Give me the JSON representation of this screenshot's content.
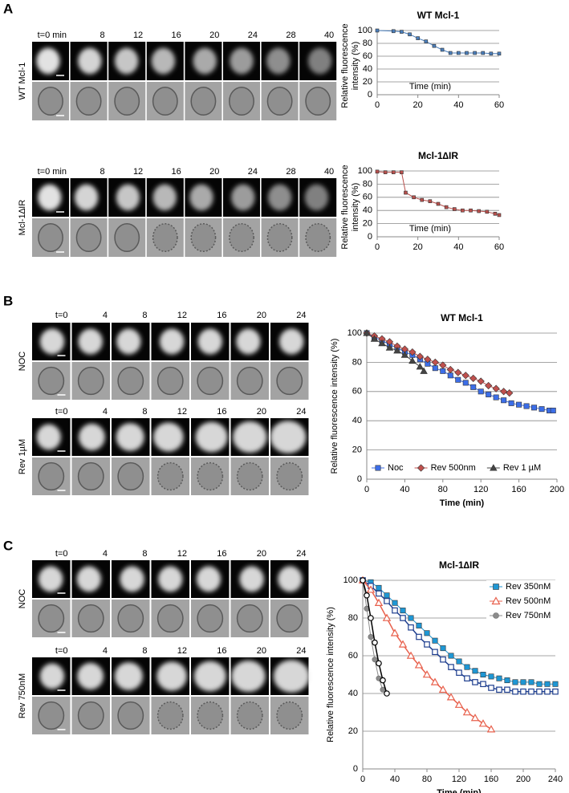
{
  "panels": [
    {
      "letter": "A",
      "strips": [
        {
          "label": "WT Mcl-1",
          "times": [
            "t=0 min",
            "8",
            "12",
            "16",
            "20",
            "24",
            "28",
            "40"
          ]
        },
        {
          "label": "Mcl-1∆IR",
          "times": [
            "t=0 min",
            "8",
            "12",
            "16",
            "20",
            "24",
            "28",
            "40"
          ]
        }
      ]
    },
    {
      "letter": "B",
      "strips": [
        {
          "label": "NOC",
          "times": [
            "t=0",
            "4",
            "8",
            "12",
            "16",
            "20",
            "24"
          ]
        },
        {
          "label": "Rev 1µM",
          "times": [
            "t=0",
            "4",
            "8",
            "12",
            "16",
            "20",
            "24"
          ]
        }
      ]
    },
    {
      "letter": "C",
      "strips": [
        {
          "label": "NOC",
          "times": [
            "t=0",
            "4",
            "8",
            "12",
            "16",
            "20",
            "24"
          ]
        },
        {
          "label": "Rev 750nM",
          "times": [
            "t=0",
            "4",
            "8",
            "12",
            "16",
            "20",
            "24"
          ]
        }
      ]
    }
  ],
  "chart_data": [
    {
      "type": "line",
      "title": "WT Mcl-1",
      "xlabel": "Time (min)",
      "ylabel": [
        "Relative fluorescence",
        "intensity (%)"
      ],
      "xlim": [
        0,
        60
      ],
      "xticks": [
        0,
        20,
        40,
        60
      ],
      "ylim": [
        0,
        100
      ],
      "yticks": [
        0,
        20,
        40,
        60,
        80,
        100
      ],
      "grid": true,
      "series": [
        {
          "color": "#4a7ebb",
          "marker": "square",
          "x": [
            0,
            8,
            12,
            16,
            20,
            24,
            28,
            32,
            36,
            40,
            44,
            48,
            52,
            56,
            60
          ],
          "values": [
            100,
            99,
            98,
            94,
            88,
            83,
            76,
            70,
            65,
            65,
            65,
            65,
            65,
            64,
            64
          ]
        }
      ]
    },
    {
      "type": "line",
      "title": "Mcl-1∆IR",
      "xlabel": "Time (min)",
      "ylabel": [
        "Relative fluorescence",
        "intensity (%)"
      ],
      "xlim": [
        0,
        60
      ],
      "xticks": [
        0,
        20,
        40,
        60
      ],
      "ylim": [
        0,
        100
      ],
      "yticks": [
        0,
        20,
        40,
        60,
        80,
        100
      ],
      "grid": true,
      "series": [
        {
          "color": "#b9504d",
          "marker": "square",
          "x": [
            0,
            4,
            8,
            12,
            14,
            18,
            22,
            26,
            30,
            34,
            38,
            42,
            46,
            50,
            54,
            58,
            60
          ],
          "values": [
            99,
            98,
            98,
            98,
            67,
            60,
            56,
            54,
            50,
            45,
            42,
            40,
            40,
            39,
            38,
            35,
            33
          ]
        }
      ]
    },
    {
      "type": "line",
      "title": "WT Mcl-1",
      "xlabel": "Time (min)",
      "ylabel": "Relative fluorescence intensity (%)",
      "xlim": [
        0,
        200
      ],
      "xticks": [
        0,
        40,
        80,
        120,
        160,
        200
      ],
      "ylim": [
        0,
        100
      ],
      "yticks": [
        0,
        20,
        40,
        60,
        80,
        100
      ],
      "grid": true,
      "legend": "bottom",
      "series": [
        {
          "name": "Noc",
          "color": "#3c6ee8",
          "marker": "square",
          "x": [
            0,
            8,
            16,
            24,
            32,
            40,
            48,
            56,
            64,
            72,
            80,
            88,
            96,
            104,
            112,
            120,
            128,
            136,
            144,
            152,
            160,
            168,
            176,
            184,
            192,
            196
          ],
          "values": [
            100,
            97,
            95,
            92,
            90,
            87,
            85,
            82,
            79,
            76,
            74,
            71,
            68,
            66,
            63,
            60,
            58,
            56,
            54,
            52,
            51,
            50,
            49,
            48,
            47,
            47
          ]
        },
        {
          "name": "Rev 500nm",
          "color": "#c0504d",
          "marker": "diamond",
          "x": [
            0,
            8,
            16,
            24,
            32,
            40,
            48,
            56,
            64,
            72,
            80,
            88,
            96,
            104,
            112,
            120,
            128,
            136,
            144,
            150
          ],
          "values": [
            100,
            98,
            96,
            94,
            91,
            89,
            87,
            84,
            82,
            80,
            78,
            75,
            73,
            71,
            69,
            67,
            64,
            62,
            60,
            59
          ]
        },
        {
          "name": "Rev 1 µM",
          "color": "#444444",
          "marker": "triangle",
          "x": [
            0,
            8,
            16,
            24,
            32,
            40,
            48,
            56,
            60
          ],
          "values": [
            100,
            96,
            93,
            90,
            88,
            85,
            81,
            77,
            74
          ]
        }
      ]
    },
    {
      "type": "line",
      "title": "Mcl-1∆IR",
      "xlabel": "Time (min)",
      "ylabel": "Relative fluorescence intensity (%)",
      "xlim": [
        0,
        240
      ],
      "xticks": [
        0,
        40,
        80,
        120,
        160,
        200,
        240
      ],
      "ylim": [
        0,
        100
      ],
      "yticks": [
        0,
        20,
        40,
        60,
        80,
        100
      ],
      "grid": true,
      "legend": "top-right",
      "series": [
        {
          "name": "Rev 350nM",
          "color": "#1f97d4",
          "marker": "square",
          "x": [
            0,
            10,
            20,
            30,
            40,
            50,
            60,
            70,
            80,
            90,
            100,
            110,
            120,
            130,
            140,
            150,
            160,
            170,
            180,
            190,
            200,
            210,
            220,
            230,
            240
          ],
          "values": [
            100,
            99,
            96,
            92,
            88,
            84,
            80,
            76,
            72,
            68,
            64,
            60,
            57,
            54,
            52,
            50,
            49,
            48,
            47,
            46,
            46,
            46,
            45,
            45,
            45
          ]
        },
        {
          "color": "#1f3f8f",
          "marker": "open-square",
          "x": [
            0,
            10,
            20,
            30,
            40,
            50,
            60,
            70,
            80,
            90,
            100,
            110,
            120,
            130,
            140,
            150,
            160,
            170,
            180,
            190,
            200,
            210,
            220,
            230,
            240
          ],
          "values": [
            100,
            97,
            93,
            89,
            84,
            80,
            75,
            70,
            66,
            62,
            58,
            54,
            51,
            48,
            46,
            45,
            43,
            42,
            42,
            41,
            41,
            41,
            41,
            41,
            41
          ]
        },
        {
          "name": "Rev 500nM",
          "color": "#e8604c",
          "marker": "open-triangle",
          "x": [
            0,
            10,
            20,
            30,
            40,
            50,
            60,
            70,
            80,
            90,
            100,
            110,
            120,
            130,
            140,
            150,
            160
          ],
          "values": [
            100,
            95,
            88,
            80,
            72,
            66,
            60,
            55,
            50,
            46,
            42,
            38,
            34,
            30,
            27,
            24,
            21
          ]
        },
        {
          "name": "Rev 750nM",
          "color": "#8c8c8c",
          "marker": "circle",
          "x": [
            0,
            5,
            10,
            15,
            20,
            25,
            30
          ],
          "values": [
            100,
            85,
            70,
            58,
            48,
            42,
            40
          ]
        },
        {
          "color": "#000000",
          "marker": "open-circle",
          "x": [
            0,
            5,
            10,
            15,
            20,
            25,
            30
          ],
          "values": [
            100,
            92,
            80,
            67,
            56,
            47,
            40
          ]
        }
      ]
    }
  ]
}
